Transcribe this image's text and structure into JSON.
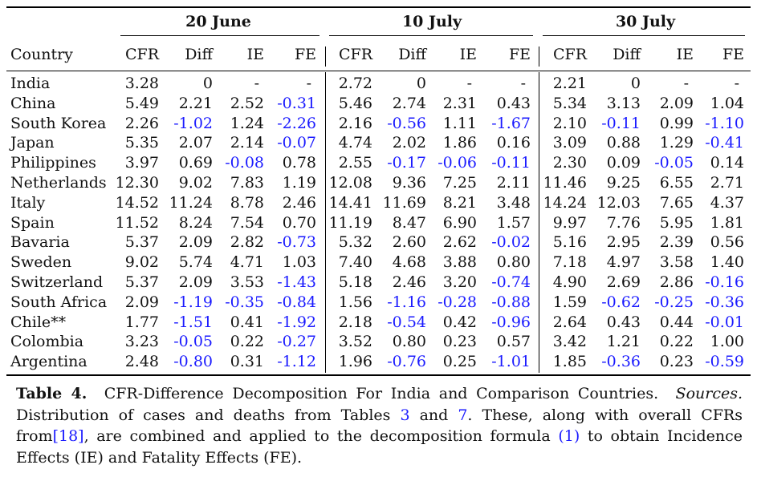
{
  "table": {
    "groups": [
      "20 June",
      "10 July",
      "30 July"
    ],
    "country_header": "Country",
    "sub_headers": [
      "CFR",
      "Diff",
      "IE",
      "FE"
    ],
    "rows": [
      {
        "country": "India",
        "v": [
          "3.28",
          "0",
          "-",
          "-",
          "2.72",
          "0",
          "-",
          "-",
          "2.21",
          "0",
          "-",
          "-"
        ]
      },
      {
        "country": "China",
        "v": [
          "5.49",
          "2.21",
          "2.52",
          "-0.31",
          "5.46",
          "2.74",
          "2.31",
          "0.43",
          "5.34",
          "3.13",
          "2.09",
          "1.04"
        ]
      },
      {
        "country": "South Korea",
        "v": [
          "2.26",
          "-1.02",
          "1.24",
          "-2.26",
          "2.16",
          "-0.56",
          "1.11",
          "-1.67",
          "2.10",
          "-0.11",
          "0.99",
          "-1.10"
        ]
      },
      {
        "country": "Japan",
        "v": [
          "5.35",
          "2.07",
          "2.14",
          "-0.07",
          "4.74",
          "2.02",
          "1.86",
          "0.16",
          "3.09",
          "0.88",
          "1.29",
          "-0.41"
        ]
      },
      {
        "country": "Philippines",
        "v": [
          "3.97",
          "0.69",
          "-0.08",
          "0.78",
          "2.55",
          "-0.17",
          "-0.06",
          "-0.11",
          "2.30",
          "0.09",
          "-0.05",
          "0.14"
        ]
      },
      {
        "country": "Netherlands",
        "v": [
          "12.30",
          "9.02",
          "7.83",
          "1.19",
          "12.08",
          "9.36",
          "7.25",
          "2.11",
          "11.46",
          "9.25",
          "6.55",
          "2.71"
        ]
      },
      {
        "country": "Italy",
        "v": [
          "14.52",
          "11.24",
          "8.78",
          "2.46",
          "14.41",
          "11.69",
          "8.21",
          "3.48",
          "14.24",
          "12.03",
          "7.65",
          "4.37"
        ]
      },
      {
        "country": "Spain",
        "v": [
          "11.52",
          "8.24",
          "7.54",
          "0.70",
          "11.19",
          "8.47",
          "6.90",
          "1.57",
          "9.97",
          "7.76",
          "5.95",
          "1.81"
        ]
      },
      {
        "country": "Bavaria",
        "v": [
          "5.37",
          "2.09",
          "2.82",
          "-0.73",
          "5.32",
          "2.60",
          "2.62",
          "-0.02",
          "5.16",
          "2.95",
          "2.39",
          "0.56"
        ]
      },
      {
        "country": "Sweden",
        "v": [
          "9.02",
          "5.74",
          "4.71",
          "1.03",
          "7.40",
          "4.68",
          "3.88",
          "0.80",
          "7.18",
          "4.97",
          "3.58",
          "1.40"
        ]
      },
      {
        "country": "Switzerland",
        "v": [
          "5.37",
          "2.09",
          "3.53",
          "-1.43",
          "5.18",
          "2.46",
          "3.20",
          "-0.74",
          "4.90",
          "2.69",
          "2.86",
          "-0.16"
        ]
      },
      {
        "country": "South Africa",
        "v": [
          "2.09",
          "-1.19",
          "-0.35",
          "-0.84",
          "1.56",
          "-1.16",
          "-0.28",
          "-0.88",
          "1.59",
          "-0.62",
          "-0.25",
          "-0.36"
        ]
      },
      {
        "country": "Chile**",
        "v": [
          "1.77",
          "-1.51",
          "0.41",
          "-1.92",
          "2.18",
          "-0.54",
          "0.42",
          "-0.96",
          "2.64",
          "0.43",
          "0.44",
          "-0.01"
        ]
      },
      {
        "country": "Colombia",
        "v": [
          "3.23",
          "-0.05",
          "0.22",
          "-0.27",
          "3.52",
          "0.80",
          "0.23",
          "0.57",
          "3.42",
          "1.21",
          "0.22",
          "1.00"
        ]
      },
      {
        "country": "Argentina",
        "v": [
          "2.48",
          "-0.80",
          "0.31",
          "-1.12",
          "1.96",
          "-0.76",
          "0.25",
          "-1.01",
          "1.85",
          "-0.36",
          "0.23",
          "-0.59"
        ]
      }
    ]
  },
  "caption": {
    "label": "Table 4.",
    "title": "CFR-Difference Decomposition For India and Comparison Countries.",
    "sources_label": "Sources.",
    "text1": "Distribution of cases and deaths from Tables",
    "ref1": "3",
    "text2": "and",
    "ref2": "7",
    "text3": ". These, along with overall CFRs from",
    "ref3": "[18]",
    "text4": ", are combined and applied to the decomposition formula",
    "ref4": "(1)",
    "text5": "to obtain Incidence Effects (IE) and Fatality Effects (FE)."
  }
}
